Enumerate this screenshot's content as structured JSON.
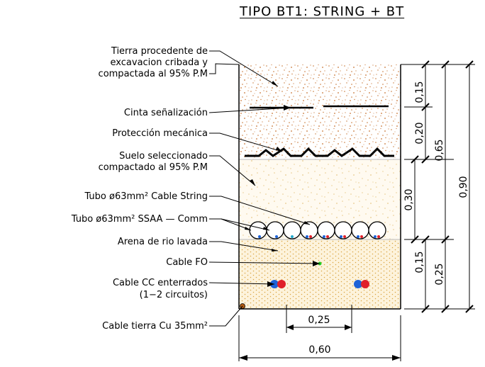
{
  "title": "TIPO BT1: STRING + BT",
  "labels": {
    "tierra_1": "Tierra procedente de",
    "tierra_2": "excavacion cribada y",
    "tierra_3": "compactada al 95% P.M",
    "cinta": "Cinta señalización",
    "proteccion": "Protección mecánica",
    "suelo_1": "Suelo seleccionado",
    "suelo_2": "compactado al 95% P.M",
    "tubo_string": "Tubo ø63mm² Cable String",
    "tubo_ssaa": "Tubo ø63mm² SSAA — Comm",
    "arena": "Arena de rio lavada",
    "cable_fo": "Cable FO",
    "cable_cc_1": "Cable CC enterrados",
    "cable_cc_2": "(1−2 circuitos)",
    "cable_tierra": "Cable tierra Cu 35mm²"
  },
  "dimensions": {
    "d015_top": "0,15",
    "d020": "0,20",
    "d065": "0,65",
    "d030": "0,30",
    "d090": "0,90",
    "d015_bottom": "0,15",
    "d025_vertical": "0,25",
    "d025_horizontal": "0,25",
    "d060": "0,60"
  },
  "colors": {
    "soil_dots": "#c87533",
    "select_fill": "#fdf6e3",
    "sand_dots": "#d9a441",
    "cable_blue": "#1e63d8",
    "cable_red": "#e0202a",
    "cable_green": "#22cc22",
    "earth_cable": "#b05a10"
  }
}
